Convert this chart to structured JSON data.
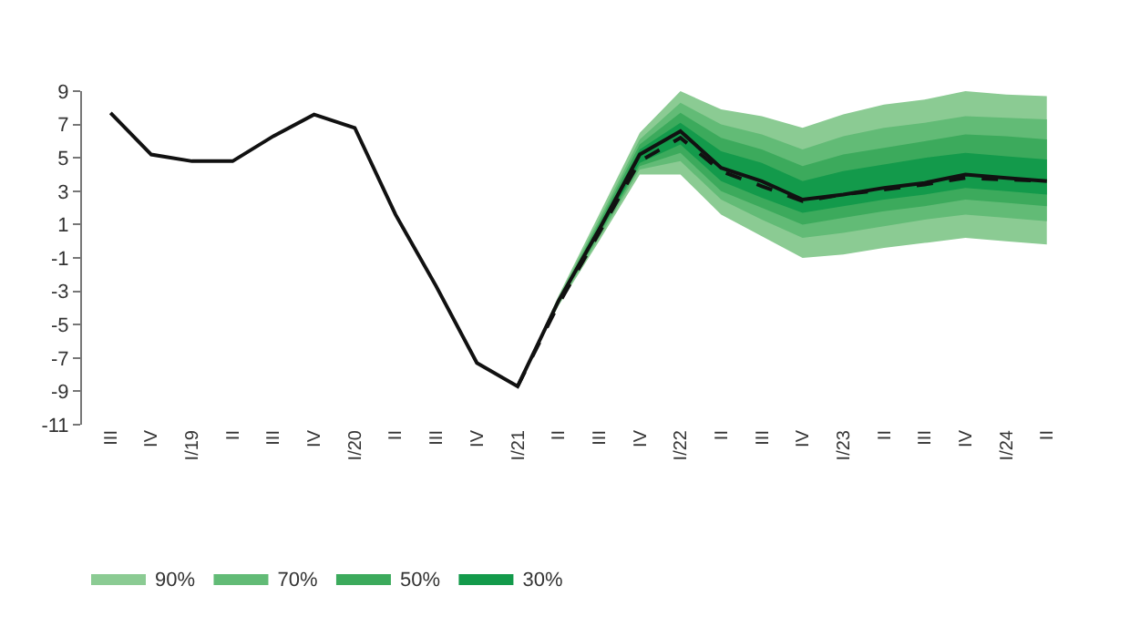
{
  "chart_data": {
    "type": "line",
    "categories": [
      "III",
      "IV",
      "I/19",
      "II",
      "III",
      "IV",
      "I/20",
      "II",
      "III",
      "IV",
      "I/21",
      "II",
      "III",
      "IV",
      "I/22",
      "II",
      "III",
      "IV",
      "I/23",
      "II",
      "III",
      "IV",
      "I/24",
      "II"
    ],
    "series": [
      {
        "name": "90%",
        "color": "#8bcb93",
        "values": [
          null,
          null,
          null,
          null,
          null,
          null,
          null,
          null,
          null,
          null,
          null,
          null,
          null,
          null,
          null,
          null,
          null,
          null,
          null,
          null,
          null,
          null,
          null,
          null
        ],
        "lower": [
          null,
          null,
          null,
          null,
          null,
          null,
          null,
          null,
          null,
          null,
          -8.7,
          -3.9,
          0.0,
          4.0,
          4.0,
          1.6,
          0.3,
          -1.0,
          -0.8,
          -0.4,
          -0.1,
          0.2,
          0.0,
          -0.2
        ],
        "upper": [
          null,
          null,
          null,
          null,
          null,
          null,
          null,
          null,
          null,
          null,
          -8.7,
          -3.3,
          1.6,
          6.5,
          9.0,
          7.9,
          7.5,
          6.8,
          7.6,
          8.2,
          8.5,
          9.0,
          8.8,
          8.7
        ]
      },
      {
        "name": "70%",
        "color": "#62bb76",
        "values": [
          null,
          null,
          null,
          null,
          null,
          null,
          null,
          null,
          null,
          null,
          null,
          null,
          null,
          null,
          null,
          null,
          null,
          null,
          null,
          null,
          null,
          null,
          null,
          null
        ],
        "lower": [
          null,
          null,
          null,
          null,
          null,
          null,
          null,
          null,
          null,
          null,
          -8.7,
          -3.8,
          0.2,
          4.3,
          4.8,
          2.5,
          1.3,
          0.2,
          0.5,
          0.9,
          1.3,
          1.6,
          1.4,
          1.2
        ],
        "upper": [
          null,
          null,
          null,
          null,
          null,
          null,
          null,
          null,
          null,
          null,
          -8.7,
          -3.4,
          1.3,
          6.1,
          8.3,
          7.0,
          6.4,
          5.5,
          6.3,
          6.8,
          7.1,
          7.5,
          7.4,
          7.3
        ]
      },
      {
        "name": "50%",
        "color": "#3caa5c",
        "values": [
          null,
          null,
          null,
          null,
          null,
          null,
          null,
          null,
          null,
          null,
          null,
          null,
          null,
          null,
          null,
          null,
          null,
          null,
          null,
          null,
          null,
          null,
          null,
          null
        ],
        "lower": [
          null,
          null,
          null,
          null,
          null,
          null,
          null,
          null,
          null,
          null,
          -8.7,
          -3.7,
          0.4,
          4.5,
          5.3,
          3.0,
          2.0,
          1.0,
          1.4,
          1.8,
          2.1,
          2.5,
          2.3,
          2.1
        ],
        "upper": [
          null,
          null,
          null,
          null,
          null,
          null,
          null,
          null,
          null,
          null,
          -8.7,
          -3.5,
          1.1,
          5.8,
          7.7,
          6.2,
          5.5,
          4.5,
          5.2,
          5.6,
          6.0,
          6.4,
          6.3,
          6.1
        ]
      },
      {
        "name": "30%",
        "color": "#139a4b",
        "values": [
          null,
          null,
          null,
          null,
          null,
          null,
          null,
          null,
          null,
          null,
          null,
          null,
          null,
          null,
          null,
          null,
          null,
          null,
          null,
          null,
          null,
          null,
          null,
          null
        ],
        "lower": [
          null,
          null,
          null,
          null,
          null,
          null,
          null,
          null,
          null,
          null,
          -8.7,
          -3.7,
          0.5,
          4.7,
          5.8,
          3.6,
          2.6,
          1.7,
          2.1,
          2.5,
          2.8,
          3.2,
          3.0,
          2.8
        ],
        "upper": [
          null,
          null,
          null,
          null,
          null,
          null,
          null,
          null,
          null,
          null,
          -8.7,
          -3.5,
          0.9,
          5.5,
          7.1,
          5.4,
          4.7,
          3.6,
          4.2,
          4.6,
          5.0,
          5.3,
          5.1,
          4.9
        ]
      },
      {
        "type": "line",
        "color": "#111111",
        "line_style": "dashed",
        "values": [
          null,
          null,
          null,
          null,
          null,
          null,
          null,
          null,
          null,
          null,
          -8.7,
          -3.8,
          0.5,
          4.8,
          6.2,
          4.2,
          3.3,
          2.4,
          2.8,
          3.1,
          3.4,
          3.8,
          3.7,
          3.6
        ]
      },
      {
        "type": "line",
        "color": "#111111",
        "line_style": "solid",
        "values": [
          7.7,
          5.2,
          4.8,
          4.8,
          6.3,
          7.6,
          6.8,
          1.6,
          -2.7,
          -7.3,
          -8.7,
          -3.6,
          0.7,
          5.2,
          6.6,
          4.4,
          3.6,
          2.5,
          2.8,
          3.2,
          3.5,
          4.0,
          3.8,
          3.6
        ]
      }
    ],
    "ylim": [
      -11,
      9
    ],
    "yticks": [
      9,
      7,
      5,
      3,
      1,
      -1,
      -3,
      -5,
      -7,
      -9,
      -11
    ],
    "grid": false,
    "legend": "bottom left",
    "marker": "none"
  }
}
